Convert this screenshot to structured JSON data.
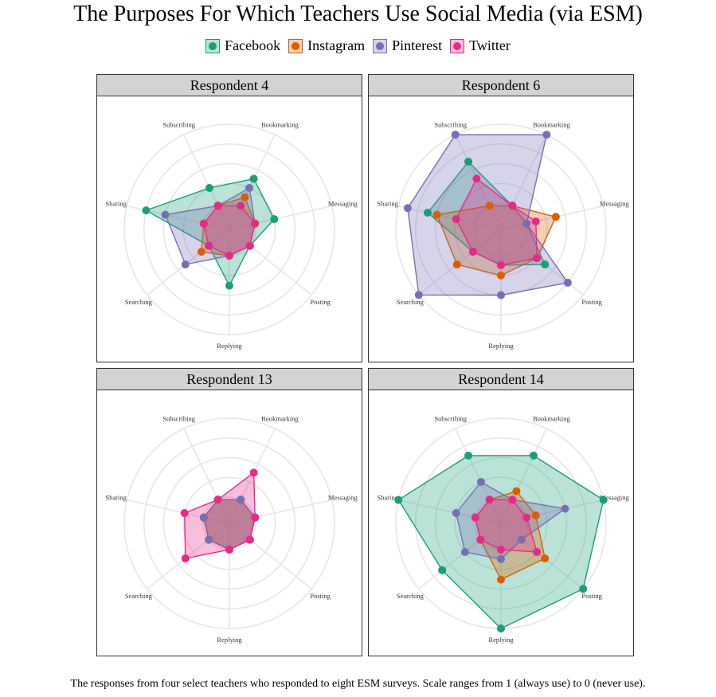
{
  "title": "The Purposes For Which Teachers Use Social Media (via ESM)",
  "caption": "The responses from four select teachers who responded to eight ESM surveys. Scale ranges from 1 (always use) to 0 (never use).",
  "legend": [
    {
      "name": "Facebook",
      "color": "#1b9e77"
    },
    {
      "name": "Instagram",
      "color": "#d95f02"
    },
    {
      "name": "Pinterest",
      "color": "#7570b3"
    },
    {
      "name": "Twitter",
      "color": "#e7298a"
    }
  ],
  "chart_data": {
    "type": "radar",
    "title": "The Purposes For Which Teachers Use Social Media (via ESM)",
    "axes": [
      "Bookmarking",
      "Messaging",
      "Posting",
      "Replying",
      "Searching",
      "Sharing",
      "Subscribing"
    ],
    "range": [
      0,
      1
    ],
    "grid": true,
    "legend_position": "top",
    "series_names": [
      "Facebook",
      "Instagram",
      "Pinterest",
      "Twitter"
    ],
    "panels": [
      {
        "label": "Respondent 4",
        "series": [
          {
            "name": "Facebook",
            "values": [
              0.38,
              0.25,
              0.0,
              0.38,
              0.0,
              0.75,
              0.25
            ]
          },
          {
            "name": "Instagram",
            "values": [
              0.12,
              0.0,
              0.0,
              0.0,
              0.12,
              0.0,
              0.0
            ]
          },
          {
            "name": "Pinterest",
            "values": [
              0.25,
              0.0,
              0.0,
              0.0,
              0.38,
              0.5,
              0.0
            ]
          },
          {
            "name": "Twitter",
            "values": [
              0.0,
              0.0,
              0.0,
              0.0,
              0.0,
              0.0,
              0.0
            ]
          }
        ]
      },
      {
        "label": "Respondent 6",
        "series": [
          {
            "name": "Facebook",
            "values": [
              0.0,
              0.0,
              0.38,
              0.12,
              0.12,
              0.62,
              0.62
            ]
          },
          {
            "name": "Instagram",
            "values": [
              0.0,
              0.38,
              0.25,
              0.25,
              0.38,
              0.5,
              0.0
            ]
          },
          {
            "name": "Pinterest",
            "values": [
              1.0,
              0.0,
              0.75,
              0.5,
              1.0,
              0.88,
              1.0
            ]
          },
          {
            "name": "Twitter",
            "values": [
              0.0,
              0.12,
              0.25,
              0.12,
              0.12,
              0.25,
              0.38
            ]
          }
        ]
      },
      {
        "label": "Respondent 13",
        "series": [
          {
            "name": "Facebook",
            "values": [
              0.0,
              0.0,
              0.0,
              0.0,
              0.0,
              0.0,
              0.0
            ]
          },
          {
            "name": "Instagram",
            "values": [
              0.0,
              0.0,
              0.0,
              0.0,
              0.0,
              0.0,
              0.0
            ]
          },
          {
            "name": "Pinterest",
            "values": [
              0.0,
              0.0,
              0.0,
              0.0,
              0.0,
              0.0,
              0.0
            ]
          },
          {
            "name": "Twitter",
            "values": [
              0.38,
              0.0,
              0.0,
              0.0,
              0.38,
              0.25,
              0.0
            ]
          }
        ]
      },
      {
        "label": "Respondent 14",
        "series": [
          {
            "name": "Facebook",
            "values": [
              0.62,
              1.0,
              1.0,
              1.0,
              0.62,
              1.0,
              0.62
            ]
          },
          {
            "name": "Instagram",
            "values": [
              0.12,
              0.12,
              0.38,
              0.38,
              0.0,
              0.0,
              0.0
            ]
          },
          {
            "name": "Pinterest",
            "values": [
              0.0,
              0.5,
              0.0,
              0.12,
              0.25,
              0.25,
              0.25
            ]
          },
          {
            "name": "Twitter",
            "values": [
              0.0,
              0.0,
              0.25,
              0.0,
              0.0,
              0.0,
              0.0
            ]
          }
        ]
      }
    ]
  }
}
